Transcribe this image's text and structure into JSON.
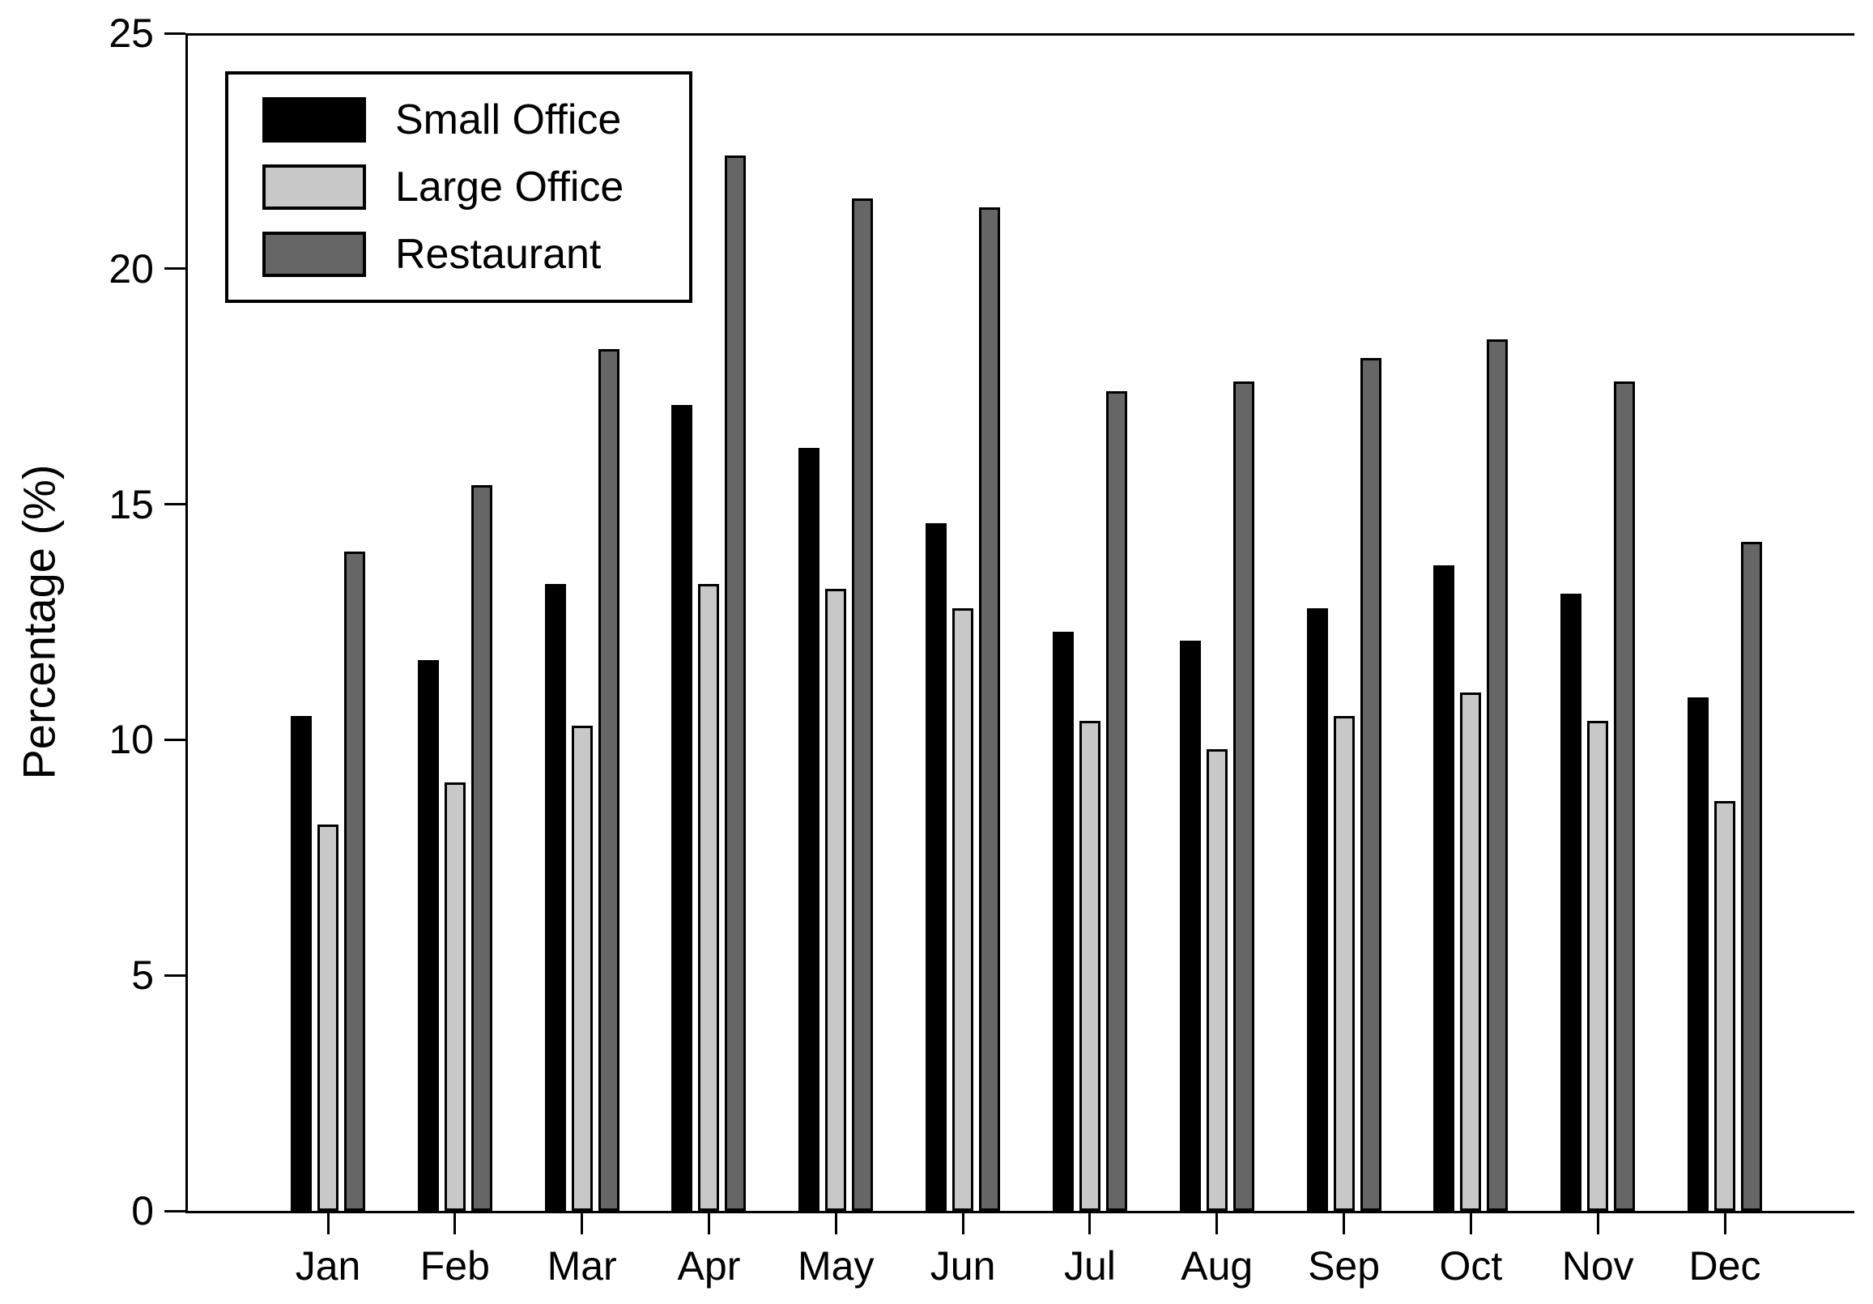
{
  "chart_data": {
    "type": "bar",
    "title": "",
    "xlabel": "",
    "ylabel": "Percentage (%)",
    "ylim": [
      0,
      25
    ],
    "yticks": [
      0,
      5,
      10,
      15,
      20,
      25
    ],
    "grid": false,
    "legend_position": "top-left",
    "background_color": "#ffffff",
    "axis_color": "#000000",
    "bar_outline_color": "#000000",
    "categories": [
      "Jan",
      "Feb",
      "Mar",
      "Apr",
      "May",
      "Jun",
      "Jul",
      "Aug",
      "Sep",
      "Oct",
      "Nov",
      "Dec"
    ],
    "series": [
      {
        "name": "Small Office",
        "color": "#000000",
        "values": [
          10.5,
          11.7,
          13.3,
          17.1,
          16.2,
          14.6,
          12.3,
          12.1,
          12.8,
          13.7,
          13.1,
          10.9
        ]
      },
      {
        "name": "Large Office",
        "color": "#c8c8c8",
        "values": [
          8.2,
          9.1,
          10.3,
          13.3,
          13.2,
          12.8,
          10.4,
          9.8,
          10.5,
          11.0,
          10.4,
          8.7
        ]
      },
      {
        "name": "Restaurant",
        "color": "#666666",
        "values": [
          14.0,
          15.4,
          18.3,
          22.4,
          21.5,
          21.3,
          17.4,
          17.6,
          18.1,
          18.5,
          17.6,
          14.2
        ]
      }
    ]
  }
}
